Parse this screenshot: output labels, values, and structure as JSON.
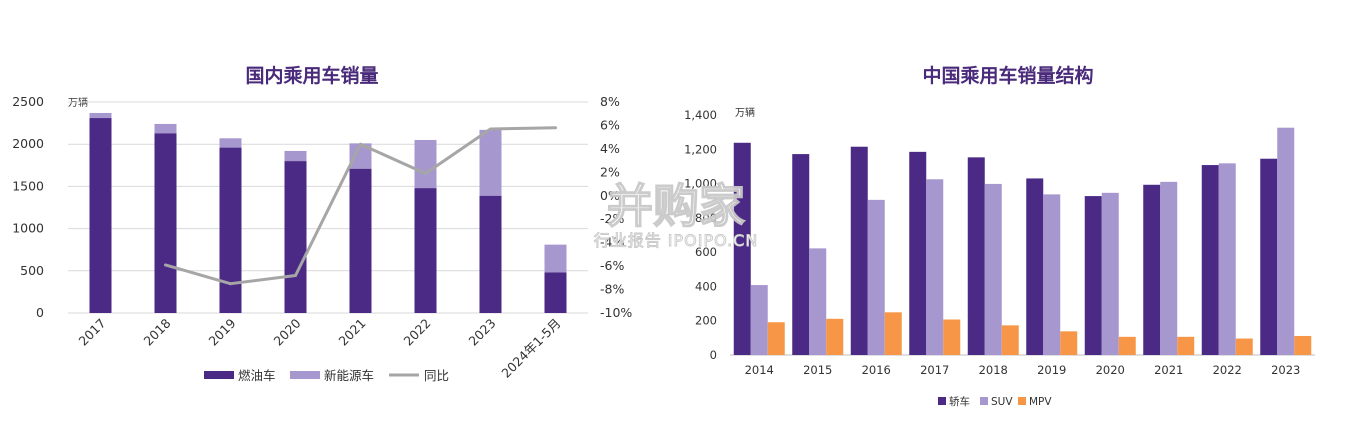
{
  "chart_data": [
    {
      "type": "bar",
      "title": "国内乘用车销量",
      "unit": "万辆",
      "categories": [
        "2017",
        "2018",
        "2019",
        "2020",
        "2021",
        "2022",
        "2023",
        "2024年1-5月"
      ],
      "yticks": [
        "0",
        "500",
        "1000",
        "1500",
        "2000",
        "2500"
      ],
      "y2ticks": [
        "-10%",
        "-8%",
        "-6%",
        "-4%",
        "-2%",
        "0%",
        "2%",
        "4%",
        "6%",
        "8%"
      ],
      "ylim": [
        0,
        2500
      ],
      "y2lim": [
        -10,
        8
      ],
      "stacked": true,
      "series": [
        {
          "name": "燃油车",
          "type": "bar",
          "color": "#4b2a85",
          "values": [
            2310,
            2130,
            1960,
            1800,
            1710,
            1480,
            1390,
            480
          ]
        },
        {
          "name": "新能源车",
          "type": "bar",
          "color": "#a797cf",
          "values": [
            60,
            110,
            110,
            120,
            300,
            570,
            780,
            330
          ]
        },
        {
          "name": "同比",
          "type": "line",
          "axis": "right",
          "color": "#a6a6a6",
          "values": [
            null,
            -5.9,
            -7.5,
            -6.8,
            4.4,
            1.9,
            5.7,
            5.8
          ]
        }
      ],
      "grid": true,
      "legend": "bottom"
    },
    {
      "type": "bar",
      "title": "中国乘用车销量结构",
      "unit": "万辆",
      "categories": [
        "2014",
        "2015",
        "2016",
        "2017",
        "2018",
        "2019",
        "2020",
        "2021",
        "2022",
        "2023"
      ],
      "yticks": [
        "0",
        "200",
        "400",
        "600",
        "800",
        "1,000",
        "1,200",
        "1,400"
      ],
      "ylim": [
        0,
        1400
      ],
      "series": [
        {
          "name": "轿车",
          "color": "#4b2a85",
          "values": [
            1238,
            1172,
            1215,
            1185,
            1153,
            1030,
            927,
            993,
            1108,
            1145
          ]
        },
        {
          "name": "SUV",
          "color": "#a797cf",
          "values": [
            408,
            622,
            905,
            1025,
            998,
            937,
            946,
            1010,
            1118,
            1326
          ]
        },
        {
          "name": "MPV",
          "color": "#f79646",
          "values": [
            191,
            211,
            249,
            207,
            173,
            138,
            106,
            106,
            96,
            111
          ]
        }
      ],
      "grid": false,
      "legend": "bottom"
    }
  ],
  "watermark": {
    "main": "并购家",
    "sub": "行业报告 IPOIPO.CN"
  }
}
